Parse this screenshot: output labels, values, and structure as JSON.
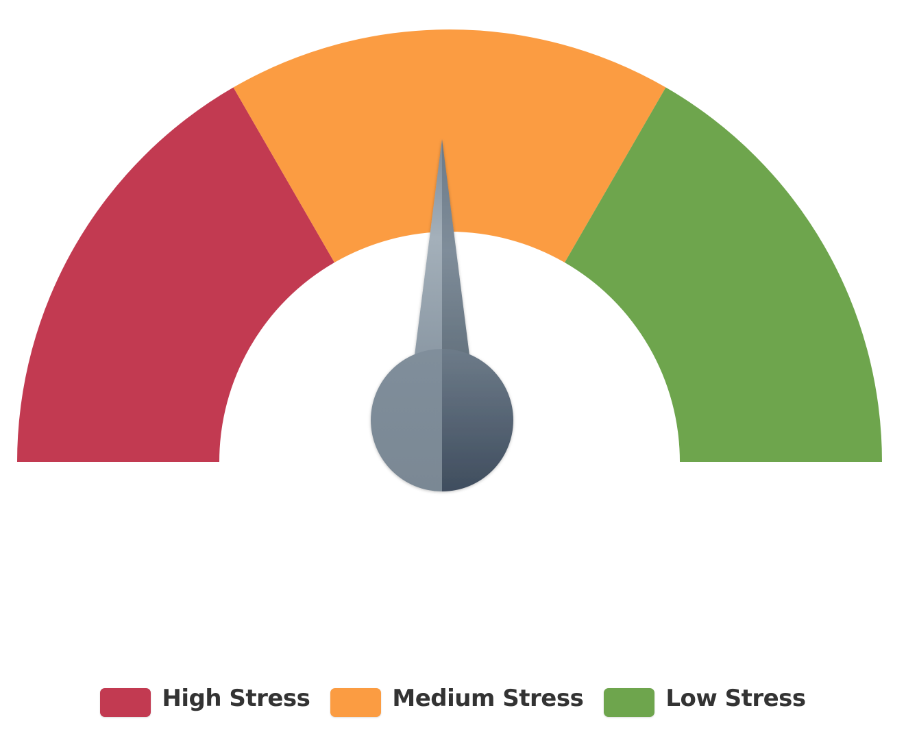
{
  "chart_data": {
    "type": "gauge",
    "range": [
      0,
      180
    ],
    "bands": [
      {
        "name": "High Stress",
        "from": 0,
        "to": 60,
        "color": "#c23a51"
      },
      {
        "name": "Medium Stress",
        "from": 60,
        "to": 120,
        "color": "#fb9c42"
      },
      {
        "name": "Low Stress",
        "from": 120,
        "to": 180,
        "color": "#6ea54d"
      }
    ],
    "needle_value": 90,
    "legend_placement": "bottom-center"
  },
  "legend": {
    "items": [
      {
        "label": "High Stress",
        "color": "#c23a51"
      },
      {
        "label": "Medium Stress",
        "color": "#fb9c42"
      },
      {
        "label": "Low Stress",
        "color": "#6ea54d"
      }
    ]
  },
  "colors": {
    "needle_light": "#a4b0ba",
    "needle_dark": "#4a5868",
    "background": "#ffffff"
  }
}
